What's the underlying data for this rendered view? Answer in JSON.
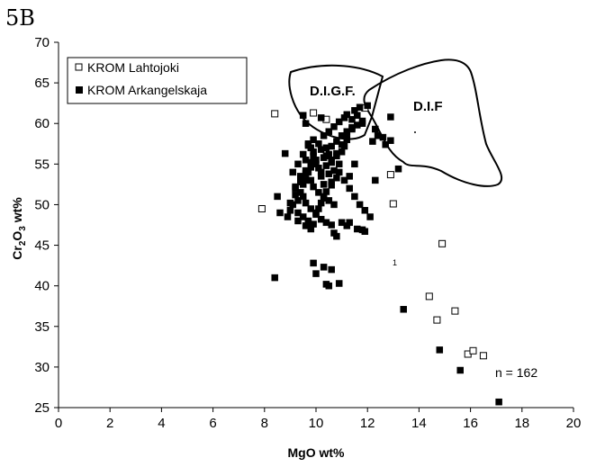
{
  "panel_label": "5B",
  "chart_data": {
    "type": "scatter",
    "xlabel": "MgO wt%",
    "ylabel": {
      "prefix": "Cr",
      "sub1": "2",
      "mid": "O",
      "sub2": "3",
      "suffix": " wt%"
    },
    "xlim": [
      0,
      20
    ],
    "ylim": [
      25,
      70
    ],
    "x_ticks": [
      "0",
      "2",
      "4",
      "6",
      "8",
      "10",
      "12",
      "14",
      "16",
      "18",
      "20"
    ],
    "y_ticks": [
      "25",
      "30",
      "35",
      "40",
      "45",
      "50",
      "55",
      "60",
      "65",
      "70"
    ],
    "grid": false,
    "legend_position": "top-left",
    "series": [
      {
        "name": "KROM Lahtojoki",
        "marker": "open-square",
        "color": "#000000",
        "x": [
          7.9,
          8.4,
          9.9,
          10.4,
          11.9,
          12.9,
          13.0,
          14.9,
          14.4,
          14.7,
          15.4,
          15.9,
          16.1,
          16.5
        ],
        "y": [
          49.5,
          61.2,
          61.3,
          60.5,
          61.9,
          53.7,
          50.1,
          45.2,
          38.7,
          35.8,
          36.9,
          31.6,
          32.0,
          31.4
        ]
      },
      {
        "name": "KROM Arkangelskaja",
        "marker": "filled-square",
        "color": "#000000",
        "x": [
          8.5,
          8.6,
          8.9,
          9.1,
          9.3,
          9.4,
          9.5,
          9.6,
          9.7,
          9.8,
          9.9,
          9.2,
          9.4,
          9.6,
          9.8,
          9.7,
          9.9,
          10.0,
          10.1,
          10.2,
          10.3,
          10.1,
          10.2,
          10.3,
          10.4,
          10.5,
          10.6,
          10.4,
          10.5,
          10.6,
          10.7,
          10.8,
          10.9,
          11.0,
          11.1,
          11.2,
          10.0,
          10.2,
          10.4,
          10.6,
          10.8,
          11.0,
          11.2,
          11.4,
          9.8,
          9.9,
          10.1,
          10.3,
          10.5,
          10.7,
          9.5,
          9.6,
          9.8,
          10.0,
          10.2,
          10.4,
          10.6,
          9.3,
          9.5,
          9.7,
          9.9,
          10.1,
          10.3,
          9.2,
          9.4,
          9.6,
          9.8,
          9.1,
          9.3,
          9.5,
          9.7,
          9.9,
          9.0,
          9.2,
          9.4,
          9.6,
          9.8,
          9.0,
          9.3,
          9.6,
          9.8,
          10.0,
          10.2,
          10.4,
          10.6,
          10.8,
          10.3,
          10.5,
          10.7,
          10.9,
          11.1,
          10.6,
          10.8,
          11.0,
          11.2,
          11.4,
          11.6,
          11.8,
          10.9,
          11.1,
          11.3,
          11.5,
          11.7,
          11.9,
          12.1,
          12.2,
          12.4,
          12.3,
          11.6,
          11.5,
          11.7,
          12.0,
          11.8,
          11.0,
          11.3,
          11.2,
          11.6,
          11.8,
          11.9,
          12.9,
          13.2,
          12.3,
          12.7,
          10.6,
          10.9,
          9.9,
          10.0,
          10.3,
          10.4,
          10.5,
          8.4,
          13.4,
          14.8,
          15.6,
          17.1,
          9.7,
          8.8,
          11.2,
          11.4,
          11.5,
          11.3,
          12.9,
          12.6,
          10.7,
          10.8,
          10.2,
          9.6,
          9.5
        ],
        "y": [
          51.0,
          49.0,
          48.5,
          50.0,
          50.5,
          51.5,
          52.5,
          53.0,
          54.0,
          55.0,
          56.0,
          52.0,
          53.5,
          55.5,
          57.0,
          57.5,
          56.5,
          55.0,
          54.5,
          53.5,
          52.5,
          57.5,
          56.8,
          55.8,
          54.8,
          53.8,
          52.8,
          57.0,
          56.2,
          55.2,
          54.2,
          56.0,
          55.0,
          56.5,
          57.2,
          58.0,
          55.5,
          54.0,
          56.0,
          57.2,
          57.8,
          58.5,
          59.0,
          59.5,
          53.0,
          52.2,
          51.5,
          51.0,
          50.5,
          50.0,
          51.0,
          50.2,
          49.5,
          48.8,
          48.2,
          47.8,
          47.5,
          49.0,
          48.5,
          48.0,
          47.6,
          49.5,
          50.8,
          52.2,
          53.2,
          54.2,
          55.2,
          54.0,
          55.0,
          56.2,
          57.3,
          58.0,
          50.2,
          51.2,
          52.8,
          53.8,
          54.6,
          49.3,
          48.0,
          47.4,
          47.0,
          49.0,
          50.2,
          51.6,
          52.4,
          53.3,
          58.5,
          59.0,
          59.6,
          60.2,
          60.7,
          55.5,
          56.3,
          57.4,
          58.6,
          59.3,
          59.8,
          60.3,
          54.0,
          53.0,
          52.0,
          51.0,
          50.0,
          49.3,
          48.5,
          57.8,
          58.5,
          59.3,
          61.0,
          61.6,
          62.0,
          62.2,
          60.0,
          47.8,
          47.8,
          47.4,
          47.0,
          46.9,
          46.7,
          60.8,
          54.4,
          53.0,
          57.4,
          42.0,
          40.3,
          42.8,
          41.5,
          42.3,
          40.2,
          40.0,
          41.0,
          37.1,
          32.1,
          29.6,
          25.7,
          47.7,
          56.3,
          61.1,
          60.5,
          55.0,
          53.5,
          57.9,
          58.3,
          46.5,
          46.1,
          60.7,
          60.0,
          61.0
        ]
      }
    ],
    "regions": [
      {
        "label": "D.I.G.F."
      },
      {
        "label": "D.I.F"
      }
    ],
    "annotations": [
      "n = 162",
      "1"
    ]
  }
}
